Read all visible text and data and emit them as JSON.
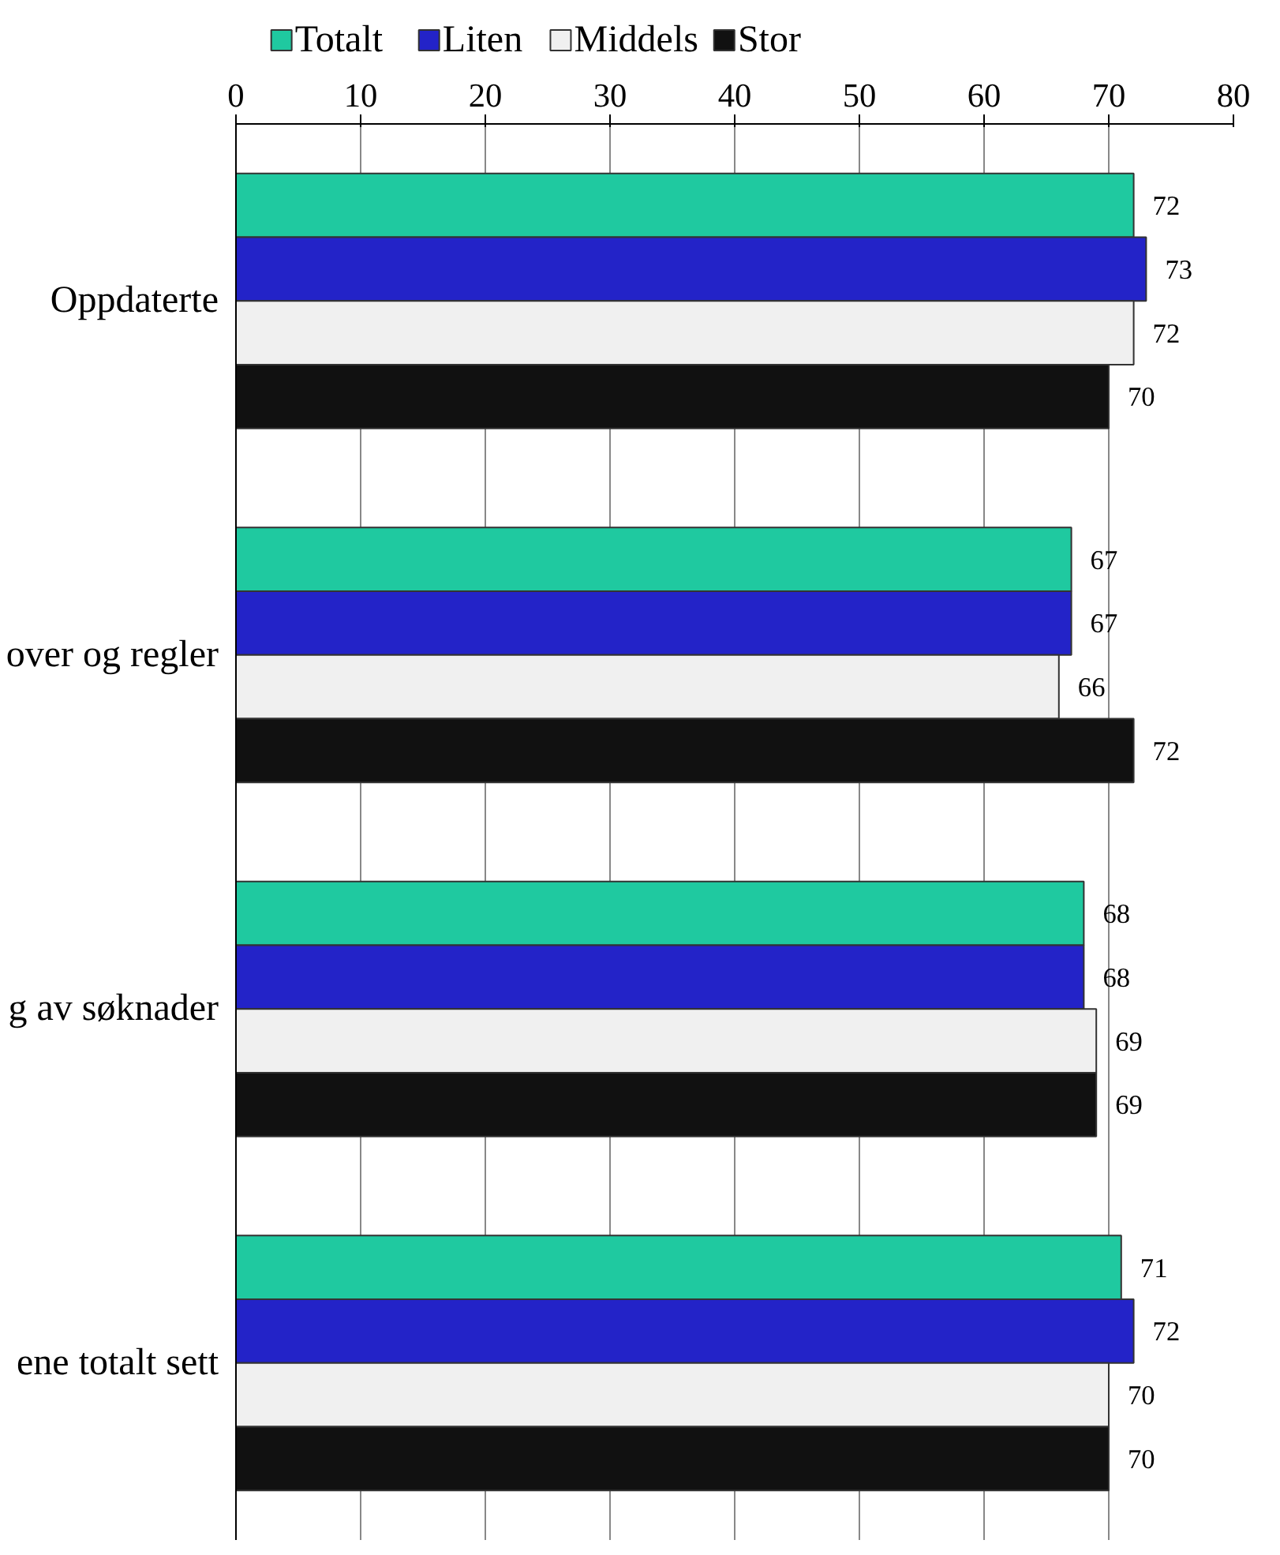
{
  "chart_data": {
    "type": "bar",
    "orientation": "horizontal",
    "categories": [
      "Oppdaterte",
      "over og regler",
      "g av søknader",
      "ene totalt sett"
    ],
    "series": [
      {
        "name": "Totalt",
        "color": "#1fc9a0",
        "values": [
          72,
          67,
          68,
          71
        ]
      },
      {
        "name": "Liten",
        "color": "#2323c8",
        "values": [
          73,
          67,
          68,
          72
        ]
      },
      {
        "name": "Middels",
        "color": "#f0f0f0",
        "values": [
          72,
          66,
          69,
          70
        ]
      },
      {
        "name": "Stor",
        "color": "#111111",
        "values": [
          70,
          72,
          69,
          70
        ]
      }
    ],
    "xlim": [
      0,
      80
    ],
    "xticks": [
      0,
      10,
      20,
      30,
      40,
      50,
      60,
      70,
      80
    ],
    "grid": "x",
    "legend": "top left",
    "data_labels": true
  }
}
